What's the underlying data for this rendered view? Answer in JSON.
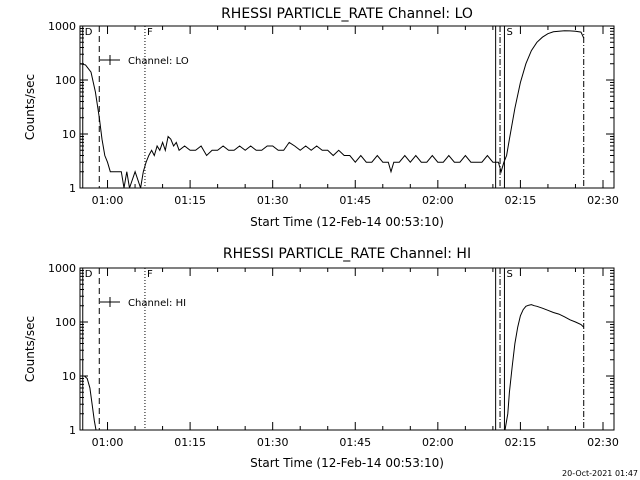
{
  "footer": {
    "timestamp": "20-Oct-2021 01:47"
  },
  "chart_data": [
    {
      "type": "line",
      "title": "RHESSI PARTICLE_RATE Channel: LO",
      "xlabel": "Start Time (12-Feb-14 00:53:10)",
      "ylabel": "Counts/sec",
      "y_scale": "log",
      "ylim": [
        1,
        1000
      ],
      "xlim_minutes": [
        55,
        152
      ],
      "x_ticks": [
        {
          "m": 60,
          "label": "01:00"
        },
        {
          "m": 75,
          "label": "01:15"
        },
        {
          "m": 90,
          "label": "01:30"
        },
        {
          "m": 105,
          "label": "01:45"
        },
        {
          "m": 120,
          "label": "02:00"
        },
        {
          "m": 135,
          "label": "02:15"
        },
        {
          "m": 150,
          "label": "02:30"
        }
      ],
      "y_ticks": [
        {
          "v": 1,
          "label": "1"
        },
        {
          "v": 10,
          "label": "10"
        },
        {
          "v": 100,
          "label": "100"
        },
        {
          "v": 1000,
          "label": "1000"
        }
      ],
      "legend": {
        "label": "Channel: LO",
        "placement": "top-left"
      },
      "markers": [
        {
          "m": 55.5,
          "style": "solid",
          "label": "D"
        },
        {
          "m": 58.5,
          "style": "dashed",
          "label": ""
        },
        {
          "m": 66.8,
          "style": "dotted",
          "label": "F"
        },
        {
          "m": 130.5,
          "style": "solid",
          "label": ""
        },
        {
          "m": 131.3,
          "style": "dashdot",
          "label": ""
        },
        {
          "m": 132.1,
          "style": "solid",
          "label": "S"
        },
        {
          "m": 146.5,
          "style": "dashdot",
          "label": ""
        }
      ],
      "series": [
        {
          "points": [
            [
              55,
              200
            ],
            [
              56,
              190
            ],
            [
              57,
              140
            ],
            [
              57.8,
              60
            ],
            [
              58.5,
              20
            ],
            [
              59,
              8
            ],
            [
              59.5,
              4
            ],
            [
              60,
              3
            ],
            [
              60.5,
              2
            ],
            [
              61,
              2
            ],
            [
              62.5,
              2
            ],
            [
              63,
              1
            ],
            [
              63.5,
              2
            ],
            [
              64,
              1
            ],
            [
              65,
              2
            ],
            [
              66,
              1
            ],
            [
              66.5,
              2
            ],
            [
              67,
              3
            ],
            [
              67.5,
              4
            ],
            [
              68,
              5
            ],
            [
              68.5,
              4
            ],
            [
              69,
              6
            ],
            [
              69.5,
              5
            ],
            [
              70,
              7
            ],
            [
              70.5,
              5
            ],
            [
              71,
              9
            ],
            [
              71.5,
              8
            ],
            [
              72,
              6
            ],
            [
              72.5,
              7
            ],
            [
              73,
              5
            ],
            [
              74,
              6
            ],
            [
              75,
              5
            ],
            [
              76,
              5
            ],
            [
              77,
              6
            ],
            [
              78,
              4
            ],
            [
              79,
              5
            ],
            [
              80,
              5
            ],
            [
              81,
              6
            ],
            [
              82,
              5
            ],
            [
              83,
              5
            ],
            [
              84,
              6
            ],
            [
              85,
              5
            ],
            [
              86,
              6
            ],
            [
              87,
              5
            ],
            [
              88,
              5
            ],
            [
              89,
              6
            ],
            [
              90,
              6
            ],
            [
              91,
              5
            ],
            [
              92,
              5
            ],
            [
              93,
              7
            ],
            [
              94,
              6
            ],
            [
              95,
              5
            ],
            [
              96,
              6
            ],
            [
              97,
              5
            ],
            [
              98,
              6
            ],
            [
              99,
              5
            ],
            [
              100,
              5
            ],
            [
              101,
              4
            ],
            [
              102,
              5
            ],
            [
              103,
              4
            ],
            [
              104,
              4
            ],
            [
              105,
              3
            ],
            [
              106,
              4
            ],
            [
              107,
              3
            ],
            [
              108,
              3
            ],
            [
              109,
              4
            ],
            [
              110,
              3
            ],
            [
              111,
              3
            ],
            [
              111.5,
              2
            ],
            [
              112,
              3
            ],
            [
              113,
              3
            ],
            [
              114,
              4
            ],
            [
              115,
              3
            ],
            [
              116,
              4
            ],
            [
              117,
              3
            ],
            [
              118,
              3
            ],
            [
              119,
              4
            ],
            [
              120,
              3
            ],
            [
              121,
              3
            ],
            [
              122,
              4
            ],
            [
              123,
              3
            ],
            [
              124,
              3
            ],
            [
              125,
              4
            ],
            [
              126,
              3
            ],
            [
              127,
              3
            ],
            [
              128,
              3
            ],
            [
              129,
              4
            ],
            [
              130,
              3
            ],
            [
              131,
              3
            ],
            [
              131.5,
              2
            ],
            [
              132,
              3
            ],
            [
              132.5,
              4
            ],
            [
              133,
              8
            ],
            [
              134,
              30
            ],
            [
              135,
              90
            ],
            [
              136,
              200
            ],
            [
              137,
              350
            ],
            [
              138,
              500
            ],
            [
              139,
              620
            ],
            [
              140,
              720
            ],
            [
              141,
              780
            ],
            [
              142,
              800
            ],
            [
              143,
              820
            ],
            [
              144,
              810
            ],
            [
              145,
              800
            ],
            [
              146,
              770
            ],
            [
              146.5,
              600
            ]
          ]
        }
      ]
    },
    {
      "type": "line",
      "title": "RHESSI PARTICLE_RATE Channel: HI",
      "xlabel": "Start Time (12-Feb-14 00:53:10)",
      "ylabel": "Counts/sec",
      "y_scale": "log",
      "ylim": [
        1,
        1000
      ],
      "xlim_minutes": [
        55,
        152
      ],
      "x_ticks": [
        {
          "m": 60,
          "label": "01:00"
        },
        {
          "m": 75,
          "label": "01:15"
        },
        {
          "m": 90,
          "label": "01:30"
        },
        {
          "m": 105,
          "label": "01:45"
        },
        {
          "m": 120,
          "label": "02:00"
        },
        {
          "m": 135,
          "label": "02:15"
        },
        {
          "m": 150,
          "label": "02:30"
        }
      ],
      "y_ticks": [
        {
          "v": 1,
          "label": "1"
        },
        {
          "v": 10,
          "label": "10"
        },
        {
          "v": 100,
          "label": "100"
        },
        {
          "v": 1000,
          "label": "1000"
        }
      ],
      "legend": {
        "label": "Channel: HI",
        "placement": "top-left"
      },
      "markers": [
        {
          "m": 55.5,
          "style": "solid",
          "label": "D"
        },
        {
          "m": 58.5,
          "style": "dashed",
          "label": ""
        },
        {
          "m": 66.8,
          "style": "dotted",
          "label": "F"
        },
        {
          "m": 130.5,
          "style": "solid",
          "label": ""
        },
        {
          "m": 131.3,
          "style": "dashdot",
          "label": ""
        },
        {
          "m": 132.1,
          "style": "solid",
          "label": "S"
        },
        {
          "m": 146.5,
          "style": "dashdot",
          "label": ""
        }
      ],
      "series": [
        {
          "points": [
            [
              55,
              10
            ],
            [
              55.8,
              10
            ],
            [
              56.3,
              9
            ],
            [
              56.8,
              6
            ],
            [
              57.2,
              3
            ],
            [
              57.6,
              1.5
            ],
            [
              57.9,
              1
            ],
            [
              132.2,
              1
            ],
            [
              132.7,
              2
            ],
            [
              133,
              5
            ],
            [
              133.5,
              15
            ],
            [
              134,
              40
            ],
            [
              134.5,
              80
            ],
            [
              135,
              130
            ],
            [
              135.5,
              170
            ],
            [
              136,
              195
            ],
            [
              136.5,
              205
            ],
            [
              137,
              210
            ],
            [
              137.5,
              200
            ],
            [
              138,
              195
            ],
            [
              139,
              180
            ],
            [
              140,
              165
            ],
            [
              141,
              150
            ],
            [
              142,
              140
            ],
            [
              143,
              125
            ],
            [
              144,
              110
            ],
            [
              145,
              100
            ],
            [
              146,
              90
            ],
            [
              146.5,
              80
            ]
          ]
        }
      ]
    }
  ]
}
